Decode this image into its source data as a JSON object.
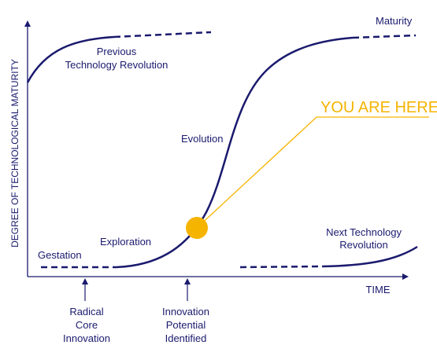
{
  "colors": {
    "curve": "#1a1a6e",
    "axis": "#1a1a6e",
    "highlight": "#f5b400",
    "background": "#ffffff"
  },
  "axes": {
    "y_label": "DEGREE OF TECHNOLOGICAL MATURITY",
    "x_label": "TIME"
  },
  "callout": {
    "text": "YOU ARE HERE"
  },
  "phases": {
    "gestation": "Gestation",
    "exploration": "Exploration",
    "evolution": "Evolution",
    "maturity": "Maturity"
  },
  "previous_revolution": {
    "line1": "Previous",
    "line2": "Technology Revolution"
  },
  "next_revolution": {
    "line1": "Next Technology",
    "line2": "Revolution"
  },
  "markers": {
    "radical": [
      "Radical",
      "Core",
      "Innovation"
    ],
    "potential": [
      "Innovation",
      "Potential",
      "Identified"
    ]
  }
}
